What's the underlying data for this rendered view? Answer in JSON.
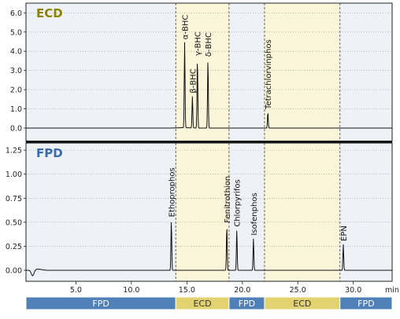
{
  "chart_data": [
    {
      "type": "line",
      "panel": "ECD",
      "title": "ECD",
      "title_color": "#8c8200",
      "ylim": [
        0,
        6.3
      ],
      "y_ticks": [
        "0.0",
        "1.0",
        "2.0",
        "3.0",
        "4.0",
        "5.0",
        "6.0"
      ],
      "y_tick_values": [
        0,
        1,
        2,
        3,
        4,
        5,
        6
      ],
      "xlim": [
        0.5,
        33.5
      ],
      "highlight_ranges": [
        [
          14.0,
          18.8
        ],
        [
          22.0,
          28.8
        ]
      ],
      "peaks": [
        {
          "name": "α-BHC",
          "x": 14.8,
          "y": 4.45
        },
        {
          "name": "β-BHC",
          "x": 15.5,
          "y": 1.65
        },
        {
          "name": "γ-BHC",
          "x": 15.95,
          "y": 3.6
        },
        {
          "name": "δ-BHC",
          "x": 16.9,
          "y": 3.55
        },
        {
          "name": "Tetrachlorvinphos",
          "x": 22.3,
          "y": 0.82
        }
      ]
    },
    {
      "type": "line",
      "panel": "FPD",
      "title": "FPD",
      "title_color": "#3a6ca8",
      "ylim": [
        -0.07,
        1.3
      ],
      "y_ticks": [
        "0.00",
        "0.25",
        "0.50",
        "0.75",
        "1.00",
        "1.25"
      ],
      "y_tick_values": [
        0,
        0.25,
        0.5,
        0.75,
        1.0,
        1.25
      ],
      "xlabel": "min",
      "x_ticks": [
        "5.0",
        "10.0",
        "15.0",
        "20.0",
        "25.0",
        "30.0"
      ],
      "x_tick_values": [
        5,
        10,
        15,
        20,
        25,
        30
      ],
      "xlim": [
        0.5,
        33.5
      ],
      "highlight_ranges": [
        [
          14.0,
          18.8
        ],
        [
          22.0,
          28.8
        ]
      ],
      "peaks": [
        {
          "name": "Ethoprophos",
          "x": 13.6,
          "y": 0.52
        },
        {
          "name": "Fenitrothion",
          "x": 18.6,
          "y": 0.46
        },
        {
          "name": "Chlorpyrifos",
          "x": 19.5,
          "y": 0.42
        },
        {
          "name": "Isofenphos",
          "x": 21.0,
          "y": 0.33
        },
        {
          "name": "EPN",
          "x": 29.1,
          "y": 0.27
        }
      ]
    }
  ],
  "detector_bar": [
    {
      "label": "FPD",
      "from": 0.5,
      "to": 14.0,
      "color": "#4f80b8",
      "text_color": "#ffffff"
    },
    {
      "label": "ECD",
      "from": 14.0,
      "to": 18.8,
      "color": "#e2d370",
      "text_color": "#333333"
    },
    {
      "label": "FPD",
      "from": 18.8,
      "to": 22.0,
      "color": "#4f80b8",
      "text_color": "#ffffff"
    },
    {
      "label": "ECD",
      "from": 22.0,
      "to": 28.8,
      "color": "#e2d370",
      "text_color": "#333333"
    },
    {
      "label": "FPD",
      "from": 28.8,
      "to": 33.5,
      "color": "#4f80b8",
      "text_color": "#ffffff"
    }
  ]
}
